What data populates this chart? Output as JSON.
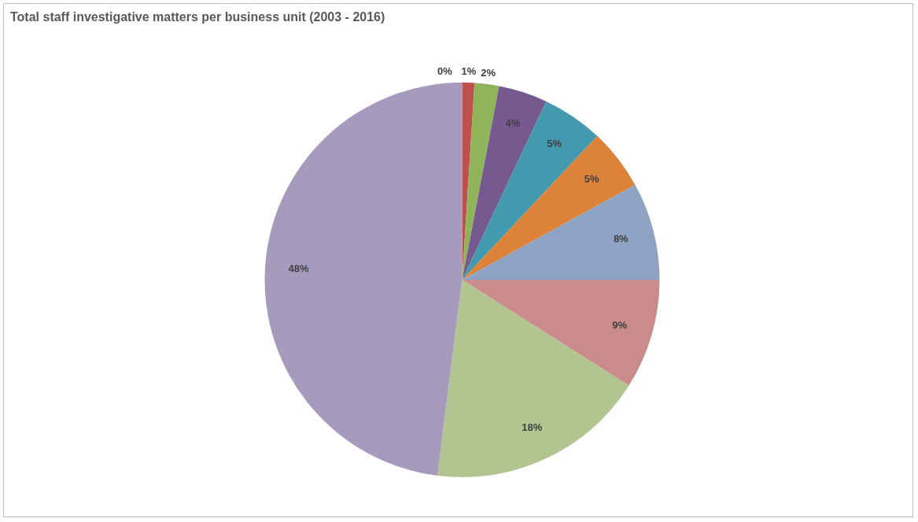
{
  "chart_data": {
    "type": "pie",
    "title": "Total staff investigative matters per business unit (2003 - 2016)",
    "categories": [
      null,
      null,
      null,
      null,
      null,
      null,
      null,
      null,
      null,
      null
    ],
    "values": [
      0,
      1,
      2,
      4,
      5,
      5,
      8,
      9,
      18,
      48
    ],
    "value_labels": [
      "0%",
      "1%",
      "2%",
      "4%",
      "5%",
      "5%",
      "8%",
      "9%",
      "18%",
      "48%"
    ],
    "colors": [
      "#4f81bd",
      "#c0504d",
      "#8fb45a",
      "#75598f",
      "#4399ae",
      "#dc8239",
      "#8ea2c4",
      "#c98c8a",
      "#b2c490",
      "#a69bbd"
    ],
    "legend": false
  }
}
